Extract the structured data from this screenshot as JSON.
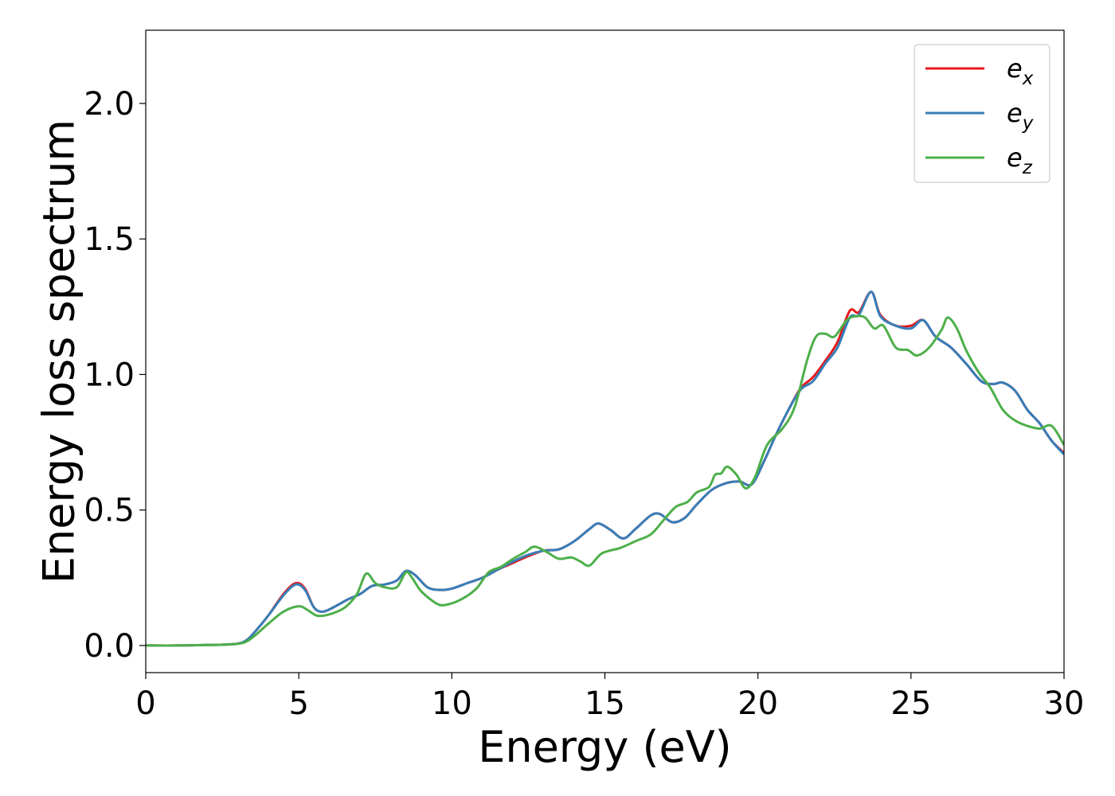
{
  "chart_data": {
    "type": "line",
    "xlabel": "Energy (eV)",
    "ylabel": "Energy loss spectrum",
    "xlim": [
      0,
      30
    ],
    "ylim": [
      -0.1,
      2.27
    ],
    "xticks": [
      "0",
      "5",
      "10",
      "15",
      "20",
      "25",
      "30"
    ],
    "yticks": [
      "0.0",
      "0.5",
      "1.0",
      "1.5",
      "2.0"
    ],
    "grid": false,
    "legend_position": "top-right",
    "series": [
      {
        "name": "e",
        "subscript": "x",
        "color": "#e41a1c",
        "points": [
          [
            0,
            0
          ],
          [
            1,
            0
          ],
          [
            2,
            0.002
          ],
          [
            2.5,
            0.003
          ],
          [
            3,
            0.007
          ],
          [
            3.3,
            0.02
          ],
          [
            3.6,
            0.055
          ],
          [
            4,
            0.11
          ],
          [
            4.5,
            0.19
          ],
          [
            4.9,
            0.23
          ],
          [
            5.2,
            0.21
          ],
          [
            5.5,
            0.14
          ],
          [
            5.8,
            0.125
          ],
          [
            6.2,
            0.145
          ],
          [
            6.6,
            0.17
          ],
          [
            7,
            0.19
          ],
          [
            7.4,
            0.22
          ],
          [
            7.8,
            0.225
          ],
          [
            8.2,
            0.24
          ],
          [
            8.5,
            0.275
          ],
          [
            8.8,
            0.26
          ],
          [
            9.2,
            0.215
          ],
          [
            9.6,
            0.205
          ],
          [
            10,
            0.21
          ],
          [
            10.5,
            0.23
          ],
          [
            11,
            0.25
          ],
          [
            11.5,
            0.28
          ],
          [
            12,
            0.305
          ],
          [
            12.5,
            0.33
          ],
          [
            13,
            0.35
          ],
          [
            13.5,
            0.355
          ],
          [
            14,
            0.385
          ],
          [
            14.5,
            0.43
          ],
          [
            14.8,
            0.45
          ],
          [
            15.2,
            0.425
          ],
          [
            15.6,
            0.395
          ],
          [
            16,
            0.43
          ],
          [
            16.5,
            0.48
          ],
          [
            16.8,
            0.485
          ],
          [
            17.2,
            0.455
          ],
          [
            17.6,
            0.47
          ],
          [
            18,
            0.52
          ],
          [
            18.5,
            0.575
          ],
          [
            19,
            0.6
          ],
          [
            19.4,
            0.605
          ],
          [
            19.8,
            0.595
          ],
          [
            20.2,
            0.68
          ],
          [
            20.6,
            0.78
          ],
          [
            21,
            0.87
          ],
          [
            21.4,
            0.95
          ],
          [
            21.8,
            0.99
          ],
          [
            22.2,
            1.05
          ],
          [
            22.6,
            1.12
          ],
          [
            23,
            1.235
          ],
          [
            23.3,
            1.23
          ],
          [
            23.7,
            1.305
          ],
          [
            24,
            1.22
          ],
          [
            24.5,
            1.18
          ],
          [
            25,
            1.18
          ],
          [
            25.4,
            1.2
          ],
          [
            25.8,
            1.14
          ],
          [
            26.3,
            1.1
          ],
          [
            26.8,
            1.04
          ],
          [
            27.3,
            0.975
          ],
          [
            27.7,
            0.965
          ],
          [
            28,
            0.97
          ],
          [
            28.4,
            0.94
          ],
          [
            28.8,
            0.87
          ],
          [
            29.2,
            0.82
          ],
          [
            29.6,
            0.755
          ],
          [
            30,
            0.71
          ]
        ]
      },
      {
        "name": "e",
        "subscript": "y",
        "color": "#377eb8",
        "points": [
          [
            0,
            0
          ],
          [
            1,
            0
          ],
          [
            2,
            0.002
          ],
          [
            2.5,
            0.003
          ],
          [
            3,
            0.007
          ],
          [
            3.3,
            0.02
          ],
          [
            3.6,
            0.055
          ],
          [
            4,
            0.11
          ],
          [
            4.5,
            0.185
          ],
          [
            4.9,
            0.225
          ],
          [
            5.2,
            0.205
          ],
          [
            5.5,
            0.14
          ],
          [
            5.8,
            0.125
          ],
          [
            6.2,
            0.145
          ],
          [
            6.6,
            0.17
          ],
          [
            7,
            0.19
          ],
          [
            7.4,
            0.22
          ],
          [
            7.8,
            0.225
          ],
          [
            8.2,
            0.24
          ],
          [
            8.5,
            0.275
          ],
          [
            8.8,
            0.26
          ],
          [
            9.2,
            0.215
          ],
          [
            9.6,
            0.205
          ],
          [
            10,
            0.21
          ],
          [
            10.5,
            0.23
          ],
          [
            11,
            0.25
          ],
          [
            11.5,
            0.28
          ],
          [
            12,
            0.31
          ],
          [
            12.5,
            0.335
          ],
          [
            13,
            0.35
          ],
          [
            13.5,
            0.355
          ],
          [
            14,
            0.385
          ],
          [
            14.5,
            0.43
          ],
          [
            14.8,
            0.45
          ],
          [
            15.2,
            0.425
          ],
          [
            15.6,
            0.395
          ],
          [
            16,
            0.43
          ],
          [
            16.5,
            0.48
          ],
          [
            16.8,
            0.485
          ],
          [
            17.2,
            0.455
          ],
          [
            17.6,
            0.47
          ],
          [
            18,
            0.52
          ],
          [
            18.5,
            0.575
          ],
          [
            19,
            0.6
          ],
          [
            19.4,
            0.605
          ],
          [
            19.8,
            0.595
          ],
          [
            20.2,
            0.68
          ],
          [
            20.6,
            0.78
          ],
          [
            21,
            0.87
          ],
          [
            21.4,
            0.945
          ],
          [
            21.8,
            0.975
          ],
          [
            22.2,
            1.04
          ],
          [
            22.6,
            1.1
          ],
          [
            23,
            1.21
          ],
          [
            23.3,
            1.22
          ],
          [
            23.7,
            1.305
          ],
          [
            24,
            1.215
          ],
          [
            24.5,
            1.18
          ],
          [
            25,
            1.17
          ],
          [
            25.4,
            1.2
          ],
          [
            25.8,
            1.14
          ],
          [
            26.3,
            1.1
          ],
          [
            26.8,
            1.04
          ],
          [
            27.3,
            0.975
          ],
          [
            27.7,
            0.965
          ],
          [
            28,
            0.97
          ],
          [
            28.4,
            0.94
          ],
          [
            28.8,
            0.87
          ],
          [
            29.2,
            0.82
          ],
          [
            29.6,
            0.755
          ],
          [
            30,
            0.705
          ]
        ]
      },
      {
        "name": "e",
        "subscript": "z",
        "color": "#4daf4a",
        "points": [
          [
            0,
            0
          ],
          [
            1,
            0
          ],
          [
            2,
            0.002
          ],
          [
            2.5,
            0.003
          ],
          [
            3,
            0.006
          ],
          [
            3.3,
            0.015
          ],
          [
            3.6,
            0.04
          ],
          [
            4,
            0.08
          ],
          [
            4.5,
            0.125
          ],
          [
            5,
            0.145
          ],
          [
            5.3,
            0.13
          ],
          [
            5.6,
            0.11
          ],
          [
            6,
            0.115
          ],
          [
            6.5,
            0.14
          ],
          [
            6.9,
            0.19
          ],
          [
            7.2,
            0.265
          ],
          [
            7.5,
            0.23
          ],
          [
            7.8,
            0.215
          ],
          [
            8.2,
            0.215
          ],
          [
            8.5,
            0.27
          ],
          [
            8.7,
            0.25
          ],
          [
            9,
            0.2
          ],
          [
            9.5,
            0.155
          ],
          [
            9.8,
            0.15
          ],
          [
            10.3,
            0.17
          ],
          [
            10.8,
            0.21
          ],
          [
            11.2,
            0.27
          ],
          [
            11.6,
            0.29
          ],
          [
            12,
            0.32
          ],
          [
            12.4,
            0.345
          ],
          [
            12.7,
            0.365
          ],
          [
            13.1,
            0.345
          ],
          [
            13.5,
            0.32
          ],
          [
            13.9,
            0.325
          ],
          [
            14.2,
            0.31
          ],
          [
            14.5,
            0.295
          ],
          [
            14.9,
            0.34
          ],
          [
            15.5,
            0.36
          ],
          [
            16,
            0.385
          ],
          [
            16.5,
            0.41
          ],
          [
            16.9,
            0.46
          ],
          [
            17.3,
            0.51
          ],
          [
            17.7,
            0.53
          ],
          [
            18,
            0.565
          ],
          [
            18.4,
            0.585
          ],
          [
            18.6,
            0.63
          ],
          [
            18.8,
            0.635
          ],
          [
            19,
            0.66
          ],
          [
            19.3,
            0.63
          ],
          [
            19.6,
            0.58
          ],
          [
            19.9,
            0.62
          ],
          [
            20.3,
            0.74
          ],
          [
            20.8,
            0.8
          ],
          [
            21.2,
            0.88
          ],
          [
            21.6,
            1.05
          ],
          [
            21.9,
            1.14
          ],
          [
            22.2,
            1.15
          ],
          [
            22.5,
            1.14
          ],
          [
            22.9,
            1.2
          ],
          [
            23.2,
            1.215
          ],
          [
            23.5,
            1.21
          ],
          [
            23.8,
            1.17
          ],
          [
            24.1,
            1.18
          ],
          [
            24.5,
            1.1
          ],
          [
            24.9,
            1.09
          ],
          [
            25.2,
            1.07
          ],
          [
            25.6,
            1.1
          ],
          [
            26,
            1.165
          ],
          [
            26.2,
            1.21
          ],
          [
            26.5,
            1.17
          ],
          [
            26.8,
            1.09
          ],
          [
            27.2,
            1.01
          ],
          [
            27.6,
            0.95
          ],
          [
            28,
            0.87
          ],
          [
            28.4,
            0.83
          ],
          [
            28.8,
            0.81
          ],
          [
            29.2,
            0.8
          ],
          [
            29.6,
            0.81
          ],
          [
            30,
            0.74
          ]
        ]
      }
    ]
  }
}
